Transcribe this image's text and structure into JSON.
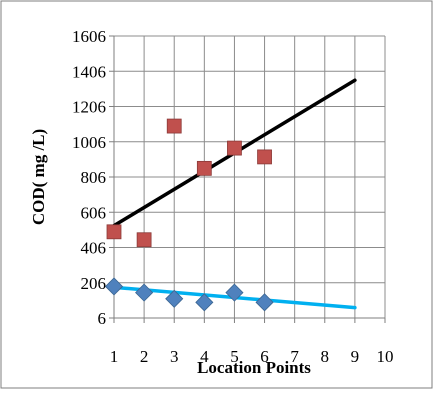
{
  "chart_data": {
    "type": "scatter",
    "title": "",
    "xlabel": "Location Points",
    "ylabel": "COD( mg /L)",
    "xlim": [
      1,
      10
    ],
    "ylim": [
      6,
      1606
    ],
    "x_ticks": [
      "1",
      "2",
      "3",
      "4",
      "5",
      "6",
      "7",
      "8",
      "9",
      "10"
    ],
    "y_ticks": [
      "6",
      "206",
      "406",
      "606",
      "806",
      "1006",
      "1206",
      "1406",
      "1606"
    ],
    "grid": true,
    "legend": "none",
    "series": [
      {
        "marker": "square",
        "color": "#c0504d",
        "points": [
          {
            "x": 1,
            "y": 495
          },
          {
            "x": 2,
            "y": 450
          },
          {
            "x": 3,
            "y": 1095
          },
          {
            "x": 4,
            "y": 855
          },
          {
            "x": 5,
            "y": 970
          },
          {
            "x": 6,
            "y": 920
          }
        ],
        "trendline": {
          "color": "#000000",
          "x": [
            1,
            9
          ],
          "y": [
            530,
            1355
          ]
        }
      },
      {
        "marker": "diamond",
        "color": "#4f81bd",
        "points": [
          {
            "x": 1,
            "y": 185
          },
          {
            "x": 2,
            "y": 150
          },
          {
            "x": 3,
            "y": 115
          },
          {
            "x": 4,
            "y": 95
          },
          {
            "x": 5,
            "y": 150
          },
          {
            "x": 6,
            "y": 95
          }
        ],
        "trendline": {
          "color": "#00b0f0",
          "x": [
            1,
            9
          ],
          "y": [
            180,
            65
          ]
        }
      }
    ]
  }
}
